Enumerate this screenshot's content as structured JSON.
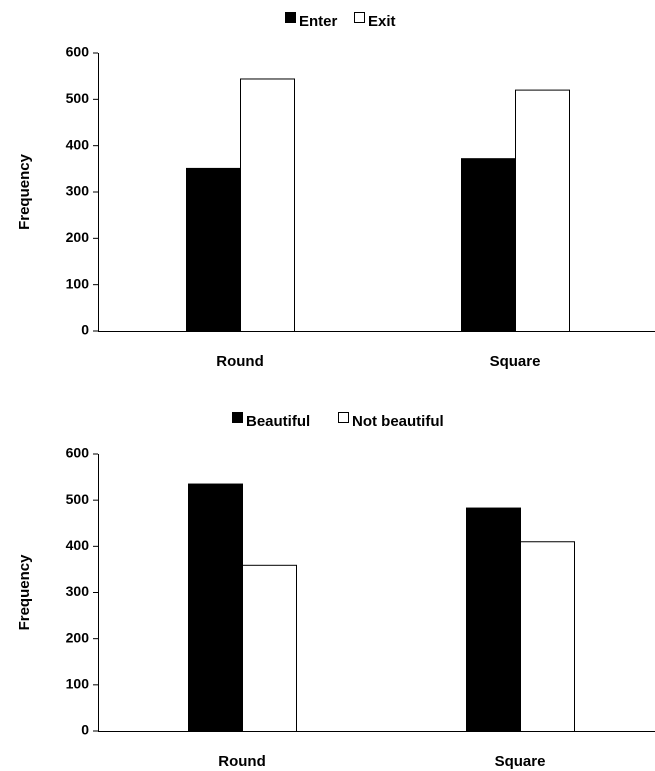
{
  "chart_data": [
    {
      "type": "bar",
      "categories": [
        "Round",
        "Square"
      ],
      "series": [
        {
          "name": "Enter",
          "values": [
            352,
            373
          ],
          "color": "#000000"
        },
        {
          "name": "Exit",
          "values": [
            545,
            521
          ],
          "color": "#ffffff"
        }
      ],
      "ylabel": "Frequency",
      "xlabel": "",
      "ylim": [
        0,
        600
      ],
      "yticks": [
        "0",
        "100",
        "200",
        "300",
        "400",
        "500",
        "600"
      ],
      "grid": false,
      "legend": "top-center"
    },
    {
      "type": "bar",
      "categories": [
        "Round",
        "Square"
      ],
      "series": [
        {
          "name": "Beautiful",
          "values": [
            536,
            484
          ],
          "color": "#000000"
        },
        {
          "name": "Not beautiful",
          "values": [
            360,
            411
          ],
          "color": "#ffffff"
        }
      ],
      "ylabel": "Frequency",
      "xlabel": "",
      "ylim": [
        0,
        600
      ],
      "yticks": [
        "0",
        "100",
        "200",
        "300",
        "400",
        "500",
        "600"
      ],
      "grid": false,
      "legend": "top-center"
    }
  ]
}
